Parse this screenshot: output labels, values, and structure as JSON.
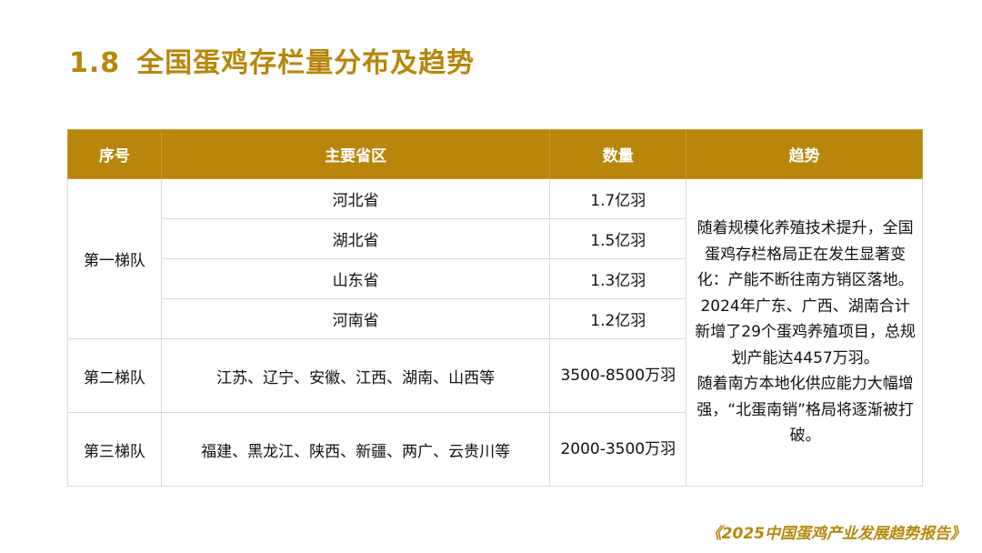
{
  "title": {
    "number": "1.8",
    "text": "全国蛋鸡存栏量分布及趋势"
  },
  "table": {
    "headers": [
      "序号",
      "主要省区",
      "数量",
      "趋势"
    ],
    "tier1": {
      "label": "第一梯队",
      "rows": [
        {
          "province": "河北省",
          "quantity": "1.7亿羽"
        },
        {
          "province": "湖北省",
          "quantity": "1.5亿羽"
        },
        {
          "province": "山东省",
          "quantity": "1.3亿羽"
        },
        {
          "province": "河南省",
          "quantity": "1.2亿羽"
        }
      ]
    },
    "tier2": {
      "label": "第二梯队",
      "province": "江苏、辽宁、安徽、江西、湖南、山西等",
      "quantity": "3500-8500万羽"
    },
    "tier3": {
      "label": "第三梯队",
      "province": "福建、黑龙江、陕西、新疆、两广、云贵川等",
      "quantity": "2000-3500万羽"
    },
    "trend": {
      "paragraph1": "随着规模化养殖技术提升，全国蛋鸡存栏格局正在发生显著变化：产能不断往南方销区落地。2024年广东、广西、湖南合计新增了29个蛋鸡养殖项目，总规划产能达4457万羽。",
      "paragraph2": "随着南方本地化供应能力大幅增强，“北蛋南销”格局将逐渐被打破。"
    }
  },
  "footer": "《2025中国蛋鸡产业发展趋势报告》",
  "colors": {
    "accent": "#b8860b",
    "header_text": "#ffffff",
    "border": "#d9d9d9"
  }
}
